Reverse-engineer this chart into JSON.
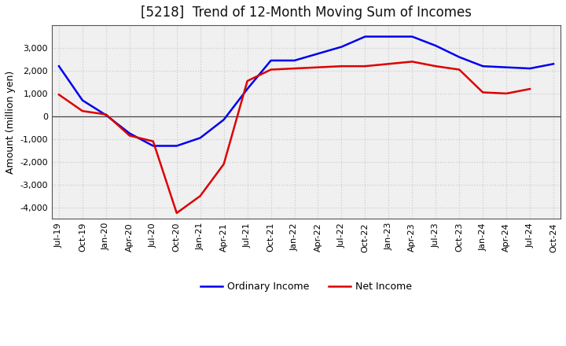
{
  "title": "[5218]  Trend of 12-Month Moving Sum of Incomes",
  "ylabel": "Amount (million yen)",
  "x_labels": [
    "Jul-19",
    "Oct-19",
    "Jan-20",
    "Apr-20",
    "Jul-20",
    "Oct-20",
    "Jan-21",
    "Apr-21",
    "Jul-21",
    "Oct-21",
    "Jan-22",
    "Apr-22",
    "Jul-22",
    "Oct-22",
    "Jan-23",
    "Apr-23",
    "Jul-23",
    "Oct-23",
    "Jan-24",
    "Apr-24",
    "Jul-24",
    "Oct-24"
  ],
  "ordinary_income": [
    2200,
    700,
    50,
    -750,
    -1300,
    -1300,
    -950,
    -150,
    1200,
    2450,
    2450,
    2750,
    3050,
    3500,
    3500,
    3500,
    3100,
    2600,
    2200,
    2150,
    2100,
    2300
  ],
  "net_income": [
    950,
    230,
    80,
    -850,
    -1100,
    -4250,
    -3500,
    -2100,
    1550,
    2050,
    2100,
    2150,
    2200,
    2200,
    2300,
    2400,
    2200,
    2050,
    1050,
    1000,
    1200,
    null
  ],
  "ordinary_color": "#0000EE",
  "net_color": "#DD0000",
  "ylim": [
    -4500,
    4000
  ],
  "yticks": [
    -4000,
    -3000,
    -2000,
    -1000,
    0,
    1000,
    2000,
    3000
  ],
  "plot_bg_color": "#f0f0f0",
  "figure_bg_color": "#ffffff",
  "grid_color": "#cccccc",
  "title_fontsize": 12,
  "axis_label_fontsize": 9,
  "tick_fontsize": 8,
  "legend_labels": [
    "Ordinary Income",
    "Net Income"
  ],
  "legend_fontsize": 9
}
